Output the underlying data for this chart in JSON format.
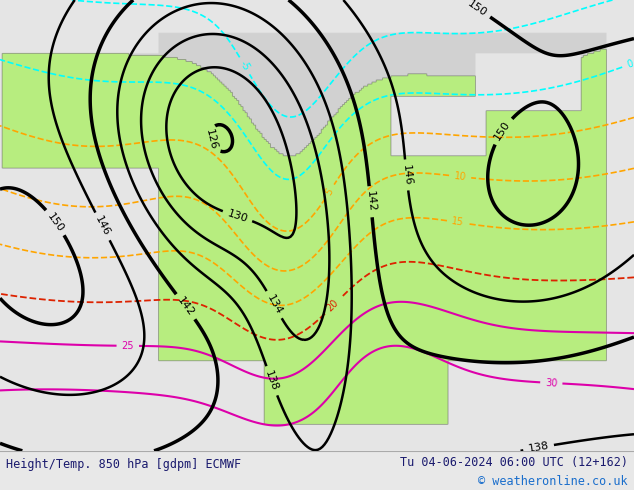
{
  "title_left": "Height/Temp. 850 hPa [gdpm] ECMWF",
  "title_right": "Tu 04-06-2024 06:00 UTC (12+162)",
  "copyright": "© weatheronline.co.uk",
  "bg_color": "#e8e8e8",
  "title_color": "#1a1a6e",
  "copyright_color": "#1a6ecc",
  "figsize": [
    6.34,
    4.9
  ],
  "dpi": 100
}
